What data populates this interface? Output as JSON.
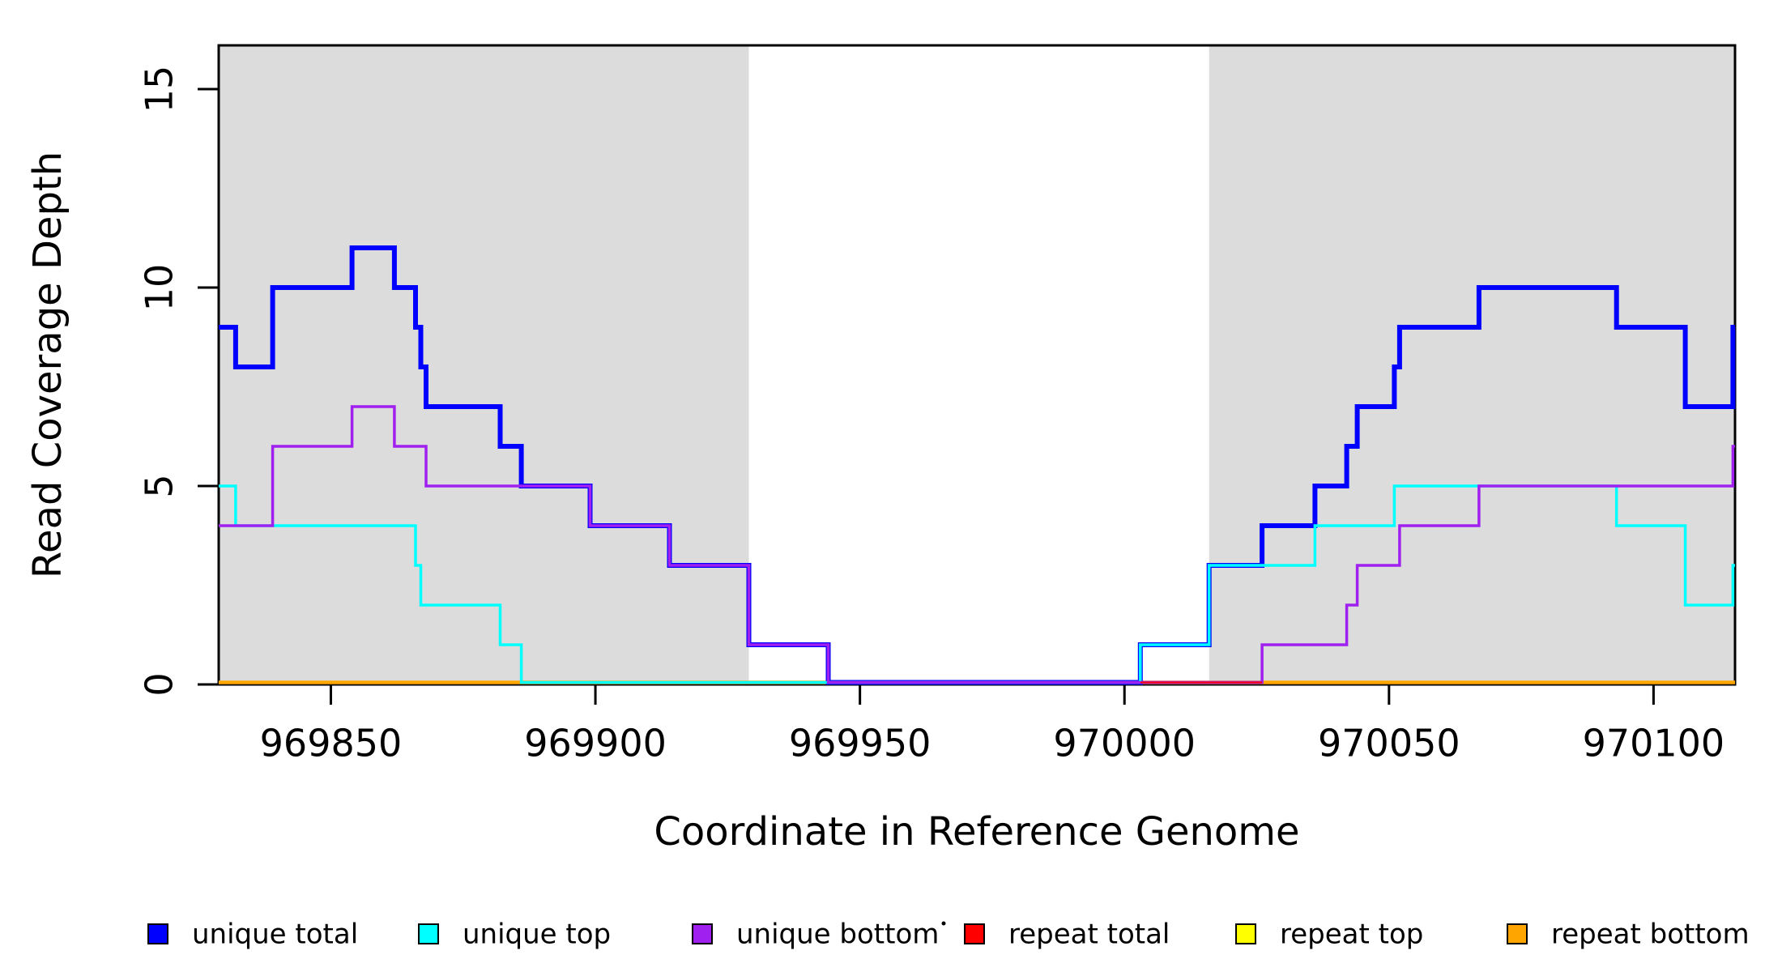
{
  "figure": {
    "background": "#ffffff",
    "plot_border_color": "#000000"
  },
  "chart_data": {
    "type": "line",
    "subtype": "step",
    "title": "",
    "xlabel": "Coordinate in Reference Genome",
    "ylabel": "Read Coverage Depth",
    "xlim": [
      969828.8,
      970115.4
    ],
    "ylim": [
      0,
      16.1
    ],
    "grid": false,
    "x_ticks": [
      {
        "value": 969850,
        "label": "969850"
      },
      {
        "value": 969900,
        "label": "969900"
      },
      {
        "value": 969950,
        "label": "969950"
      },
      {
        "value": 970000,
        "label": "970000"
      },
      {
        "value": 970050,
        "label": "970050"
      },
      {
        "value": 970100,
        "label": "970100"
      }
    ],
    "y_ticks": [
      {
        "value": 0,
        "label": "0"
      },
      {
        "value": 5,
        "label": "5"
      },
      {
        "value": 10,
        "label": "10"
      },
      {
        "value": 15,
        "label": "15"
      }
    ],
    "shaded_regions": [
      {
        "from": 969828.8,
        "to": 969929,
        "color": "#DCDCDC"
      },
      {
        "from": 970016,
        "to": 970115.4,
        "color": "#DCDCDC"
      }
    ],
    "series": [
      {
        "name": "unique_total",
        "label": "unique total",
        "color": "#0000FF",
        "line_width": 6,
        "steps": [
          [
            969828.8,
            9
          ],
          [
            969832,
            8
          ],
          [
            969839,
            10
          ],
          [
            969854,
            11
          ],
          [
            969862,
            10
          ],
          [
            969866,
            9
          ],
          [
            969867,
            8
          ],
          [
            969868,
            7
          ],
          [
            969882,
            6
          ],
          [
            969886,
            5
          ],
          [
            969899,
            4
          ],
          [
            969914,
            3
          ],
          [
            969929,
            1
          ],
          [
            969944,
            0
          ],
          [
            970003,
            1
          ],
          [
            970016,
            3
          ],
          [
            970026,
            4
          ],
          [
            970036,
            5
          ],
          [
            970042,
            6
          ],
          [
            970044,
            7
          ],
          [
            970051,
            8
          ],
          [
            970052,
            9
          ],
          [
            970067,
            10
          ],
          [
            970093,
            9
          ],
          [
            970106,
            7
          ],
          [
            970115,
            9
          ]
        ]
      },
      {
        "name": "unique_top",
        "label": "unique top",
        "color": "#00FFFF",
        "line_width": 3.5,
        "steps": [
          [
            969828.8,
            5
          ],
          [
            969832,
            4
          ],
          [
            969866,
            3
          ],
          [
            969867,
            2
          ],
          [
            969882,
            1
          ],
          [
            969886,
            0
          ],
          [
            970003,
            1
          ],
          [
            970016,
            3
          ],
          [
            970036,
            4
          ],
          [
            970051,
            5
          ],
          [
            970093,
            4
          ],
          [
            970106,
            2
          ],
          [
            970115,
            3
          ]
        ]
      },
      {
        "name": "unique_bottom",
        "label": "unique bottom",
        "color": "#A020F0",
        "line_width": 3.5,
        "steps": [
          [
            969828.8,
            4
          ],
          [
            969839,
            6
          ],
          [
            969854,
            7
          ],
          [
            969862,
            6
          ],
          [
            969868,
            5
          ],
          [
            969899,
            4
          ],
          [
            969914,
            3
          ],
          [
            969929,
            1
          ],
          [
            969944,
            0
          ],
          [
            970026,
            1
          ],
          [
            970042,
            2
          ],
          [
            970044,
            3
          ],
          [
            970052,
            4
          ],
          [
            970067,
            5
          ],
          [
            970115,
            6
          ]
        ]
      },
      {
        "name": "repeat_total",
        "label": "repeat total",
        "color": "#FF0000",
        "line_width": 2.5,
        "steps": [
          [
            969828.8,
            0
          ]
        ]
      },
      {
        "name": "repeat_top",
        "label": "repeat top",
        "color": "#FFFF00",
        "line_width": 2.5,
        "steps": [
          [
            969828.8,
            0
          ]
        ]
      },
      {
        "name": "repeat_bottom",
        "label": "repeat bottom",
        "color": "#FFA500",
        "line_width": 4.5,
        "steps": [
          [
            969828.8,
            0
          ]
        ]
      }
    ],
    "draw_order": [
      "repeat_total",
      "repeat_top",
      "repeat_bottom",
      "unique_total",
      "unique_top",
      "unique_bottom"
    ],
    "baseline_overlays": [
      {
        "color": "#A020F0",
        "width": 3.5,
        "from": 970003,
        "to": 970026
      },
      {
        "color": "#FF0000",
        "width": 2,
        "from": 970003,
        "to": 970026
      }
    ],
    "legend": {
      "position": "bottom",
      "swatch_border_color": "#000000",
      "stray_mark": ".",
      "items": [
        {
          "label": "unique total",
          "color": "#0000FF"
        },
        {
          "label": "unique top",
          "color": "#00FFFF"
        },
        {
          "label": "unique bottom",
          "color": "#A020F0"
        },
        {
          "label": "repeat total",
          "color": "#FF0000"
        },
        {
          "label": "repeat top",
          "color": "#FFFF00"
        },
        {
          "label": "repeat bottom",
          "color": "#FFA500"
        }
      ]
    }
  }
}
